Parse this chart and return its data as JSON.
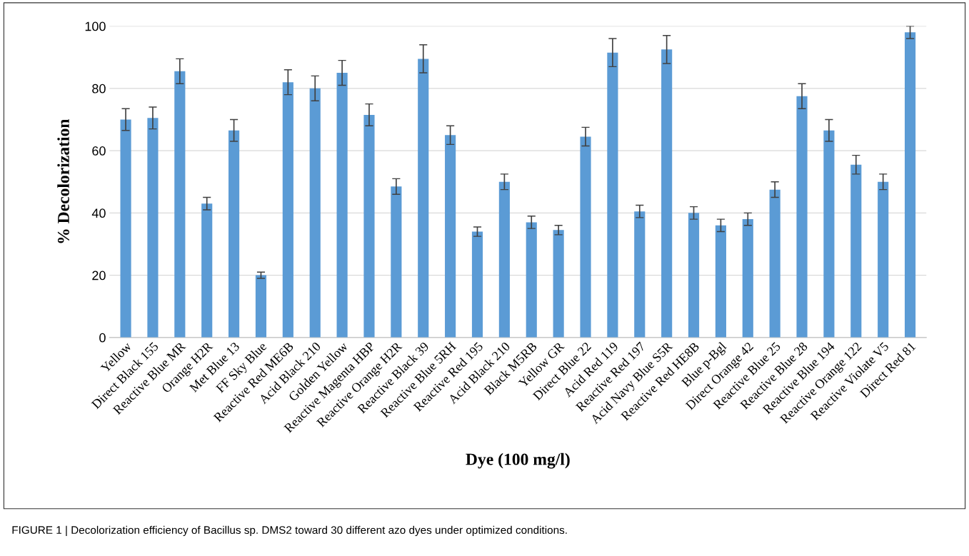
{
  "chart_data": {
    "type": "bar",
    "xlabel": "Dye (100 mg/l)",
    "ylabel": "% Decolorization",
    "categories": [
      "Yellow",
      "Direct Black 155",
      "Reactive Blue MR",
      "Orange H2R",
      "Met Blue 13",
      "FF Sky Blue",
      "Reactive Red ME6B",
      "Acid Black 210",
      "Golden Yellow",
      "Reactive Magenta HBP",
      "Reactive Orange H2R",
      "Reactive Black 39",
      "Reactive Blue 5RH",
      "Reactive Red 195",
      "Acid Black 210",
      "Black M5RB",
      "Yellow GR",
      "Direct Blue 22",
      "Acid Red 119",
      "Reactive Red 197",
      "Acid Navy Blue S5R",
      "Reactive Red HE8B",
      "Blue p-Bgl",
      "Direct Orange 42",
      "Reactive Blue 25",
      "Reactive Blue 28",
      "Reactive Blue 194",
      "Reactive Orange 122",
      "Reactive Violate V5",
      "Direct Red 81"
    ],
    "values": [
      70,
      70.5,
      85.5,
      43,
      66.5,
      20,
      82,
      80,
      85,
      71.5,
      48.5,
      89.5,
      65,
      34,
      50,
      37,
      34.5,
      64.5,
      91.5,
      40.5,
      92.5,
      40,
      36,
      38,
      47.5,
      77.5,
      66.5,
      55.5,
      50,
      98
    ],
    "errors": [
      3.5,
      3.5,
      4,
      2,
      3.5,
      1,
      4,
      4,
      4,
      3.5,
      2.5,
      4.5,
      3,
      1.5,
      2.5,
      2,
      1.5,
      3,
      4.5,
      2,
      4.5,
      2,
      2,
      2,
      2.5,
      4,
      3.5,
      3,
      2.5,
      2
    ],
    "color": "#5b9bd5",
    "ylim": [
      0,
      100
    ],
    "yticks": [
      0,
      20,
      40,
      60,
      80,
      100
    ],
    "grid": "y",
    "annotations": [
      "FIGURE 1 | Decolorization efficiency of Bacillus sp. DMS2 toward 30 different azo dyes under optimized conditions."
    ]
  }
}
